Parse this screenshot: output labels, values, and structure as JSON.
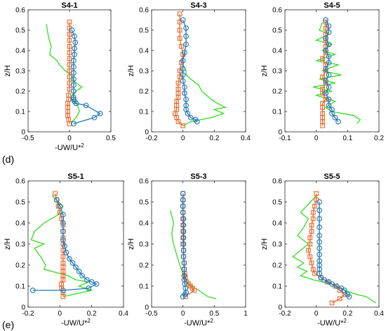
{
  "figure": {
    "row_labels": [
      "(d)",
      "(e)"
    ]
  },
  "colors": {
    "les": "#1f77b4",
    "rans": "#e8672a",
    "exp": "#33dd22",
    "axis": "#000000"
  },
  "series_styles": [
    {
      "key": "s1",
      "color": "#1f77b4",
      "marker": "circle"
    },
    {
      "key": "s2",
      "color": "#e8672a",
      "marker": "square"
    },
    {
      "key": "s3",
      "color": "#33dd22",
      "marker": "none"
    }
  ],
  "chart_data": [
    {
      "type": "line",
      "title": "S4-1",
      "xlabel": "-UW/U*2",
      "ylabel": "z/H",
      "xlim": [
        -0.5,
        0.5
      ],
      "ylim": [
        0,
        0.6
      ],
      "xticks": [
        "-0.5",
        "0",
        "0.5"
      ],
      "yticks": [
        "0",
        "0.1",
        "0.2",
        "0.3",
        "0.4",
        "0.5",
        "0.6"
      ],
      "series": [
        {
          "x": [
            0.03,
            0.06,
            0.07,
            0.06,
            0.06,
            0.05,
            0.05,
            0.05,
            0.05,
            0.05,
            0.05,
            0.05,
            0.05,
            0.06,
            0.08,
            0.2,
            0.37,
            0.3,
            0.05
          ],
          "y": [
            0.5,
            0.47,
            0.44,
            0.41,
            0.38,
            0.35,
            0.32,
            0.29,
            0.26,
            0.23,
            0.2,
            0.17,
            0.16,
            0.15,
            0.14,
            0.13,
            0.09,
            0.07,
            0.04
          ]
        },
        {
          "x": [
            0.0,
            0.0,
            0.0,
            0.0,
            0.0,
            0.0,
            0.0,
            0.0,
            0.0,
            0.0,
            0.0,
            0.0,
            -0.01,
            -0.01,
            -0.02,
            -0.02,
            -0.02,
            -0.02,
            -0.01,
            0.0
          ],
          "y": [
            0.54,
            0.51,
            0.48,
            0.45,
            0.42,
            0.39,
            0.36,
            0.33,
            0.3,
            0.27,
            0.24,
            0.21,
            0.18,
            0.16,
            0.14,
            0.12,
            0.1,
            0.08,
            0.06,
            0.04
          ]
        },
        {
          "x": [
            -0.28,
            -0.25,
            -0.22,
            -0.24,
            -0.15,
            -0.12,
            -0.05,
            0.02,
            0.05,
            0.15,
            0.08,
            0.03,
            0.02,
            0.1,
            0.12,
            0.08,
            0.03,
            0.03
          ],
          "y": [
            0.53,
            0.46,
            0.42,
            0.38,
            0.35,
            0.33,
            0.3,
            0.28,
            0.25,
            0.22,
            0.2,
            0.18,
            0.16,
            0.13,
            0.1,
            0.07,
            0.05,
            0.03
          ]
        }
      ]
    },
    {
      "type": "line",
      "title": "S4-3",
      "xlabel": "",
      "ylabel": "z/H",
      "xlim": [
        -0.2,
        0.4
      ],
      "ylim": [
        0,
        0.6
      ],
      "xticks": [
        "-0.2",
        "0",
        "0.2",
        "0.4"
      ],
      "yticks": [
        "0",
        "0.1",
        "0.2",
        "0.3",
        "0.4",
        "0.5",
        "0.6"
      ],
      "series": [
        {
          "x": [
            0.0,
            0.02,
            0.02,
            0.02,
            0.01,
            0.0,
            0.0,
            0.0,
            0.0,
            0.01,
            0.01,
            0.02,
            0.02,
            0.02,
            0.03,
            0.05,
            0.08,
            0.09
          ],
          "y": [
            0.55,
            0.51,
            0.47,
            0.43,
            0.39,
            0.35,
            0.31,
            0.28,
            0.25,
            0.22,
            0.19,
            0.16,
            0.13,
            0.11,
            0.09,
            0.07,
            0.06,
            0.05
          ]
        },
        {
          "x": [
            -0.02,
            -0.02,
            -0.02,
            -0.02,
            -0.01,
            0.0,
            -0.01,
            -0.02,
            -0.02,
            -0.03,
            -0.03,
            -0.03,
            -0.03,
            -0.04,
            -0.04,
            -0.04,
            -0.05,
            -0.04,
            -0.03,
            0.0
          ],
          "y": [
            0.58,
            0.54,
            0.5,
            0.46,
            0.42,
            0.38,
            0.34,
            0.3,
            0.27,
            0.24,
            0.21,
            0.19,
            0.17,
            0.15,
            0.13,
            0.11,
            0.09,
            0.07,
            0.05,
            0.03
          ]
        },
        {
          "x": [
            0.0,
            0.0,
            0.02,
            0.02,
            0.05,
            0.1,
            0.12,
            0.15,
            0.18,
            0.22,
            0.27,
            0.2,
            0.26,
            0.18,
            0.05,
            0.0
          ],
          "y": [
            0.36,
            0.33,
            0.3,
            0.28,
            0.26,
            0.23,
            0.2,
            0.18,
            0.16,
            0.14,
            0.12,
            0.11,
            0.09,
            0.07,
            0.05,
            0.03
          ]
        }
      ]
    },
    {
      "type": "line",
      "title": "S4-5",
      "xlabel": "",
      "ylabel": "z/H",
      "xlim": [
        -0.1,
        0.2
      ],
      "ylim": [
        0,
        0.6
      ],
      "xticks": [
        "-0.1",
        "0",
        "0.1",
        "0.2"
      ],
      "yticks": [
        "0",
        "0.1",
        "0.2",
        "0.3",
        "0.4",
        "0.5",
        "0.6"
      ],
      "series": [
        {
          "x": [
            0.03,
            0.04,
            0.04,
            0.03,
            0.04,
            0.03,
            0.04,
            0.04,
            0.03,
            0.04,
            0.03,
            0.04,
            0.03,
            0.04,
            0.04,
            0.05,
            0.05,
            0.06,
            0.07
          ],
          "y": [
            0.55,
            0.52,
            0.49,
            0.46,
            0.43,
            0.4,
            0.37,
            0.34,
            0.31,
            0.28,
            0.25,
            0.22,
            0.19,
            0.16,
            0.13,
            0.11,
            0.09,
            0.07,
            0.05
          ]
        },
        {
          "x": [
            0.03,
            0.03,
            0.03,
            0.03,
            0.03,
            0.03,
            0.02,
            0.03,
            0.03,
            0.02,
            0.03,
            0.02,
            0.02,
            0.03,
            0.02,
            0.02,
            0.02,
            0.02,
            0.02,
            0.02
          ],
          "y": [
            0.54,
            0.51,
            0.48,
            0.45,
            0.42,
            0.39,
            0.36,
            0.33,
            0.3,
            0.27,
            0.24,
            0.21,
            0.19,
            0.16,
            0.14,
            0.12,
            0.09,
            0.07,
            0.05,
            0.03
          ]
        },
        {
          "x": [
            0.02,
            0.01,
            0.04,
            0.0,
            0.05,
            0.02,
            0.06,
            0.0,
            0.07,
            0.02,
            0.08,
            0.01,
            0.06,
            -0.01,
            0.05,
            0.0,
            0.06,
            0.03,
            0.05,
            0.12,
            0.14,
            0.13
          ],
          "y": [
            0.54,
            0.5,
            0.48,
            0.45,
            0.43,
            0.4,
            0.38,
            0.35,
            0.33,
            0.3,
            0.28,
            0.26,
            0.24,
            0.22,
            0.2,
            0.18,
            0.15,
            0.12,
            0.1,
            0.08,
            0.06,
            0.04
          ]
        }
      ]
    },
    {
      "type": "line",
      "title": "S5-1",
      "xlabel": "-UW/U*2",
      "ylabel": "z/H",
      "xlim": [
        -0.2,
        0.4
      ],
      "ylim": [
        0,
        0.6
      ],
      "xticks": [
        "-0.2",
        "0",
        "0.2",
        "0.4"
      ],
      "yticks": [
        "0",
        "0.1",
        "0.2",
        "0.3",
        "0.4",
        "0.5",
        "0.6"
      ],
      "series": [
        {
          "x": [
            -0.02,
            0.0,
            0.02,
            0.02,
            0.02,
            0.02,
            0.03,
            0.04,
            0.06,
            0.08,
            0.1,
            0.12,
            0.14,
            0.17,
            0.2,
            0.23,
            0.18,
            0.02,
            -0.17
          ],
          "y": [
            0.51,
            0.48,
            0.44,
            0.4,
            0.36,
            0.32,
            0.29,
            0.26,
            0.23,
            0.21,
            0.19,
            0.17,
            0.15,
            0.13,
            0.12,
            0.11,
            0.09,
            0.08,
            0.08
          ]
        },
        {
          "x": [
            -0.03,
            -0.02,
            -0.01,
            0.0,
            0.01,
            0.02,
            0.02,
            0.02,
            0.02,
            0.02,
            0.02,
            0.02,
            0.02,
            0.02,
            0.02,
            0.02,
            0.01,
            0.01,
            0.02,
            0.02
          ],
          "y": [
            0.54,
            0.51,
            0.48,
            0.45,
            0.42,
            0.39,
            0.36,
            0.33,
            0.3,
            0.27,
            0.24,
            0.21,
            0.19,
            0.17,
            0.15,
            0.13,
            0.11,
            0.09,
            0.07,
            0.05
          ]
        },
        {
          "x": [
            -0.05,
            0.02,
            -0.01,
            -0.1,
            -0.16,
            -0.18,
            -0.1,
            -0.16,
            -0.12,
            -0.09,
            -0.1,
            0.05,
            0.1,
            0.18,
            0.12,
            0.2,
            0.02
          ],
          "y": [
            0.53,
            0.48,
            0.44,
            0.4,
            0.36,
            0.32,
            0.3,
            0.28,
            0.24,
            0.2,
            0.18,
            0.15,
            0.13,
            0.12,
            0.1,
            0.08,
            0.05
          ]
        }
      ]
    },
    {
      "type": "line",
      "title": "S5-3",
      "xlabel": "-UW/U*2",
      "ylabel": "z/H",
      "xlim": [
        -0.5,
        1
      ],
      "ylim": [
        0,
        0.6
      ],
      "xticks": [
        "-0.5",
        "0",
        "0.5",
        "1"
      ],
      "yticks": [
        "0",
        "0.1",
        "0.2",
        "0.3",
        "0.4",
        "0.5",
        "0.6"
      ],
      "series": [
        {
          "x": [
            0.0,
            0.0,
            0.0,
            0.0,
            0.01,
            0.01,
            0.01,
            0.01,
            0.01,
            0.01,
            0.01,
            0.02,
            0.02,
            0.02,
            0.02,
            0.03,
            0.04,
            0.05,
            0.03,
            0.0
          ],
          "y": [
            0.54,
            0.51,
            0.48,
            0.45,
            0.42,
            0.39,
            0.36,
            0.33,
            0.3,
            0.27,
            0.24,
            0.21,
            0.18,
            0.15,
            0.13,
            0.11,
            0.09,
            0.07,
            0.06,
            0.05
          ]
        },
        {
          "x": [
            0.0,
            0.0,
            0.0,
            0.0,
            0.0,
            0.0,
            0.0,
            0.0,
            0.0,
            0.01,
            0.01,
            0.02,
            0.02,
            0.03,
            0.04,
            0.06,
            0.09,
            0.12,
            0.15,
            0.18,
            0.04
          ],
          "y": [
            0.54,
            0.51,
            0.48,
            0.45,
            0.42,
            0.39,
            0.36,
            0.33,
            0.3,
            0.27,
            0.24,
            0.21,
            0.18,
            0.16,
            0.14,
            0.12,
            0.11,
            0.1,
            0.09,
            0.08,
            0.05
          ]
        },
        {
          "x": [
            -0.2,
            -0.15,
            -0.18,
            -0.15,
            -0.1,
            -0.05,
            0.0,
            0.05,
            0.1,
            0.2,
            0.3,
            0.4,
            0.53
          ],
          "y": [
            0.46,
            0.4,
            0.35,
            0.3,
            0.25,
            0.2,
            0.16,
            0.13,
            0.11,
            0.09,
            0.07,
            0.05,
            0.04
          ]
        }
      ]
    },
    {
      "type": "line",
      "title": "S5-5",
      "xlabel": "-UW/U*2",
      "ylabel": "z/H",
      "xlim": [
        -0.2,
        0.4
      ],
      "ylim": [
        0,
        0.6
      ],
      "xticks": [
        "-0.2",
        "0",
        "0.2",
        "0.4"
      ],
      "yticks": [
        "0",
        "0.1",
        "0.2",
        "0.3",
        "0.4",
        "0.5",
        "0.6"
      ],
      "series": [
        {
          "x": [
            0.02,
            0.02,
            0.02,
            0.02,
            0.02,
            0.02,
            0.02,
            0.02,
            0.02,
            0.02,
            0.02,
            0.02,
            0.03,
            0.05,
            0.08,
            0.1,
            0.13,
            0.16,
            0.18,
            0.2,
            0.21
          ],
          "y": [
            0.5,
            0.46,
            0.42,
            0.38,
            0.34,
            0.31,
            0.28,
            0.25,
            0.22,
            0.2,
            0.18,
            0.16,
            0.14,
            0.13,
            0.12,
            0.11,
            0.1,
            0.09,
            0.08,
            0.06,
            0.05
          ]
        },
        {
          "x": [
            0.0,
            0.0,
            -0.01,
            -0.02,
            -0.02,
            -0.03,
            -0.03,
            -0.04,
            -0.04,
            -0.05,
            -0.04,
            -0.03,
            -0.02,
            -0.01,
            0.03,
            0.07,
            0.12,
            0.15,
            0.18,
            0.15,
            0.1
          ],
          "y": [
            0.54,
            0.51,
            0.48,
            0.45,
            0.42,
            0.39,
            0.36,
            0.33,
            0.3,
            0.27,
            0.24,
            0.21,
            0.18,
            0.16,
            0.14,
            0.12,
            0.1,
            0.08,
            0.06,
            0.04,
            0.02
          ]
        },
        {
          "x": [
            0.0,
            -0.05,
            -0.1,
            -0.05,
            -0.08,
            -0.12,
            -0.05,
            -0.1,
            -0.15,
            -0.08,
            -0.12,
            -0.06,
            -0.1,
            -0.02,
            0.1,
            0.15,
            0.22,
            0.26,
            0.32,
            0.38
          ],
          "y": [
            0.53,
            0.49,
            0.45,
            0.42,
            0.38,
            0.34,
            0.3,
            0.27,
            0.24,
            0.21,
            0.19,
            0.17,
            0.15,
            0.13,
            0.11,
            0.09,
            0.07,
            0.06,
            0.05,
            0.02
          ]
        }
      ]
    }
  ]
}
